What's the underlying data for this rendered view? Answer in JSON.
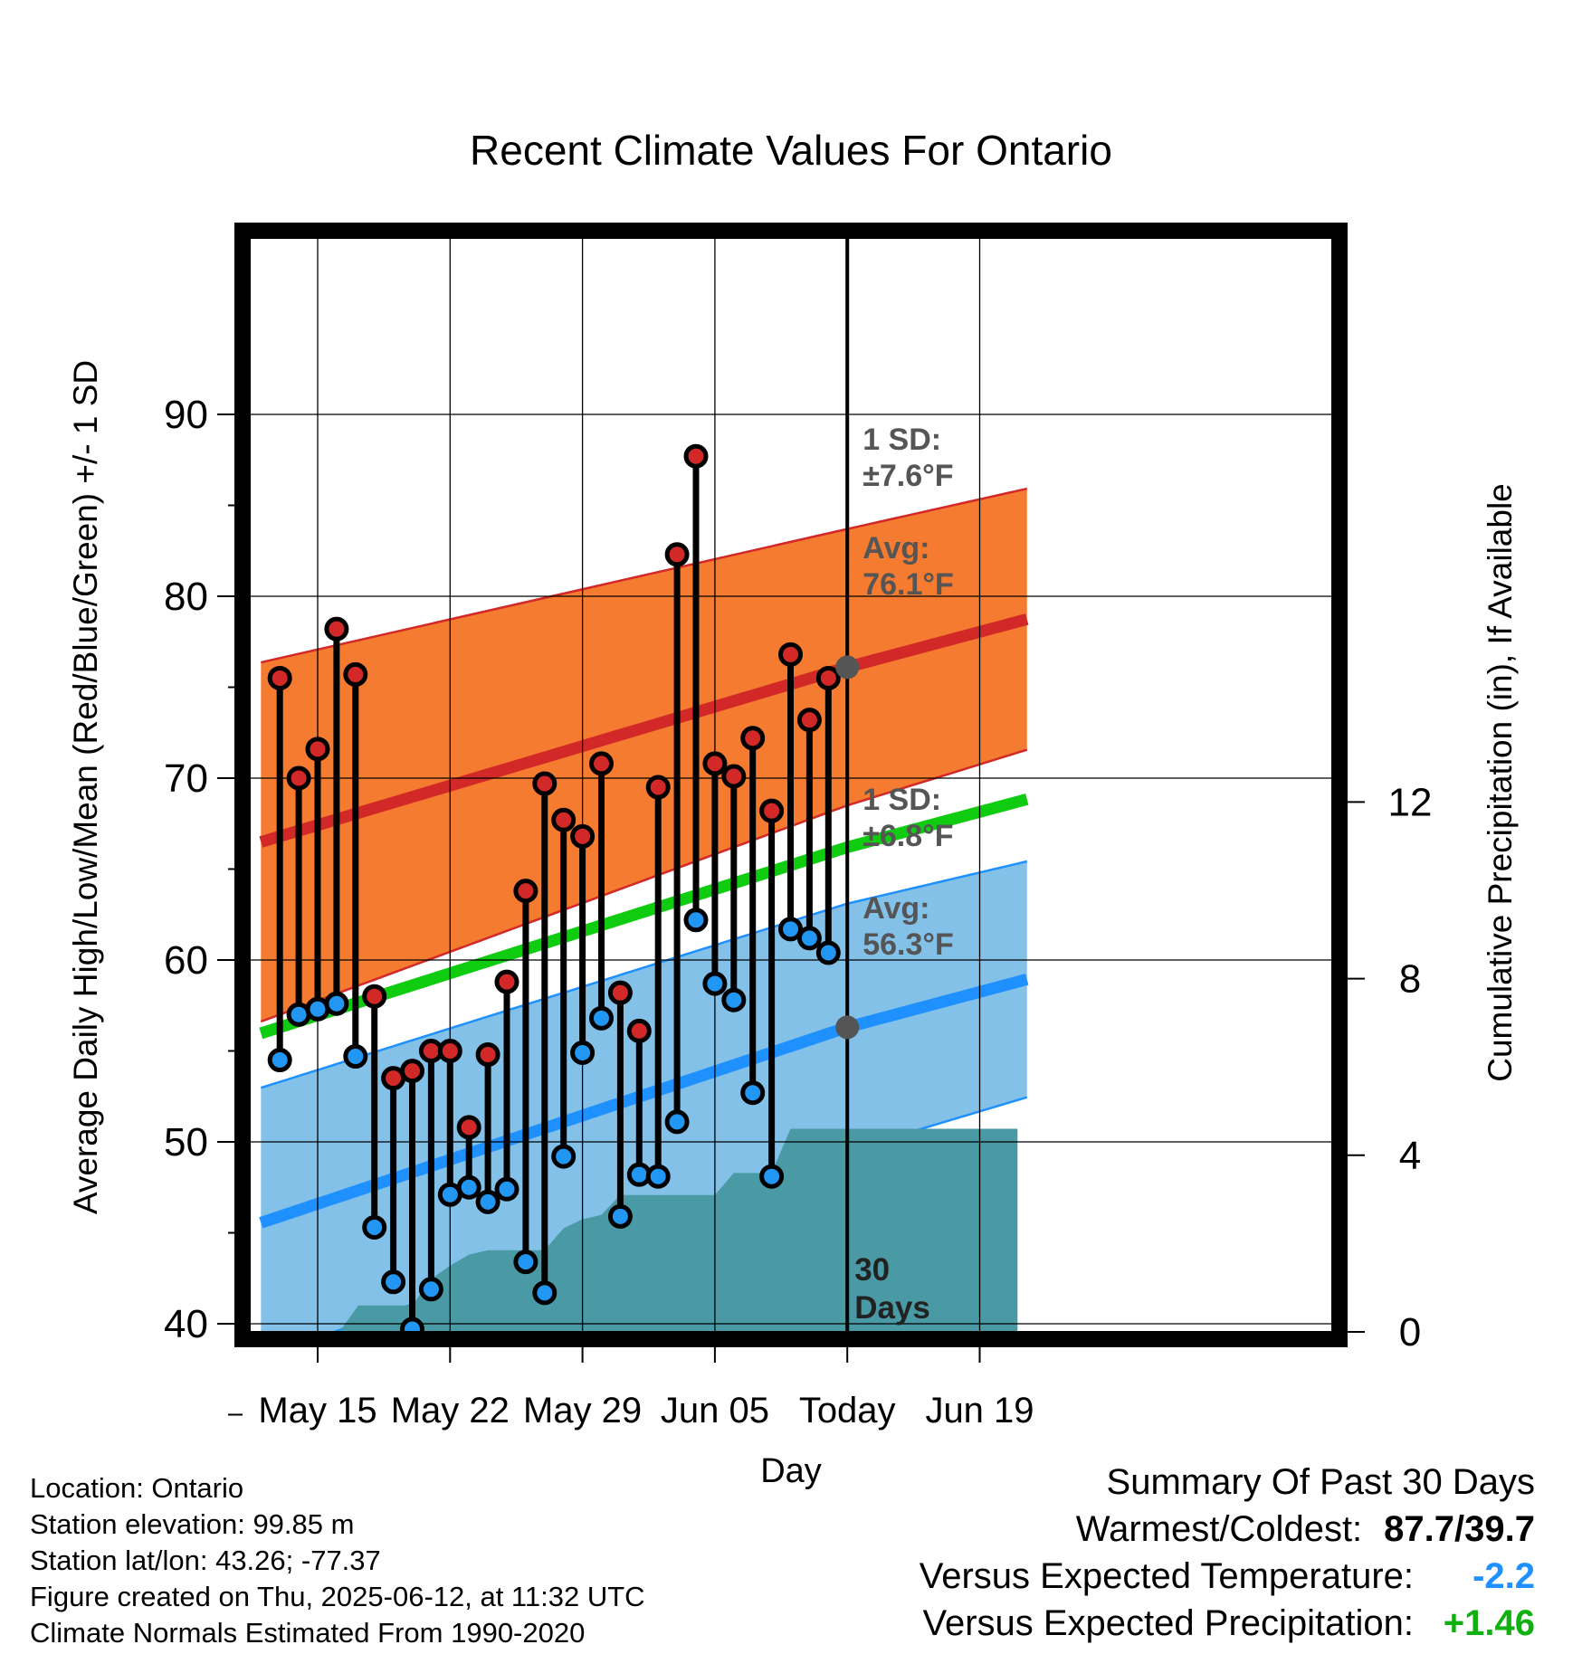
{
  "chart_data": {
    "type": "line",
    "title": "Recent Climate Values For Ontario",
    "xlabel": "Day",
    "ylabel": "Average Daily High/Low/Mean (Red/Blue/Green) +/- 1 SD",
    "y2label": "Cumulative Precipitation (in), If Available",
    "x_tick_labels": [
      "May 15",
      "May 22",
      "May 29",
      "Jun 05",
      "Today",
      "Jun 19"
    ],
    "x_tick_days": [
      0,
      7,
      14,
      21,
      28,
      35
    ],
    "x_range_days": [
      -3.0,
      37.9
    ],
    "today_day": 28,
    "ylim": [
      31.5,
      92.5
    ],
    "yticks": [
      40,
      50,
      60,
      70,
      80,
      90
    ],
    "y2lim": [
      0,
      26
    ],
    "y2ticks": [
      0,
      4,
      8,
      12
    ],
    "grid": true,
    "colors": {
      "high_band": "#f47b30",
      "high_line": "#d22828",
      "low_band": "#84c1e8",
      "low_line": "#1e90ff",
      "mean_line": "#10cc10",
      "precip": "#4a9aa6",
      "high_marker": "#d22828",
      "low_marker": "#2196f3",
      "annotation": "#555555"
    },
    "normals": {
      "day": [
        -2,
        28,
        37
      ],
      "high_avg": [
        66.8,
        76.1,
        78.6
      ],
      "high_sd": [
        9.8,
        7.6,
        7.2
      ],
      "low_avg": [
        45.9,
        56.3,
        58.8
      ],
      "low_sd": [
        7.4,
        6.8,
        6.5
      ],
      "mean": [
        56.3,
        66.2,
        68.7
      ]
    },
    "observations": {
      "day": [
        -2,
        -1,
        0,
        1,
        2,
        3,
        4,
        5,
        6,
        7,
        8,
        9,
        10,
        11,
        12,
        13,
        14,
        15,
        16,
        17,
        18,
        19,
        20,
        21,
        22,
        23,
        24,
        25,
        26,
        27
      ],
      "high": [
        75.5,
        70.0,
        71.6,
        78.2,
        75.7,
        58.0,
        53.5,
        53.9,
        55.0,
        55.0,
        50.8,
        54.8,
        58.8,
        63.8,
        69.7,
        67.7,
        66.8,
        70.8,
        58.2,
        56.1,
        69.5,
        82.3,
        87.7,
        70.8,
        70.1,
        72.2,
        68.2,
        76.8,
        73.2,
        75.5
      ],
      "low": [
        54.5,
        57.0,
        57.3,
        57.6,
        54.7,
        45.3,
        42.3,
        39.7,
        41.9,
        47.1,
        47.5,
        46.7,
        47.4,
        43.4,
        41.7,
        49.2,
        54.9,
        56.8,
        45.9,
        48.2,
        48.1,
        51.1,
        62.2,
        58.7,
        57.8,
        52.7,
        48.1,
        61.7,
        61.2,
        60.4
      ]
    },
    "precip_cumulative": {
      "day": [
        -2,
        0.0,
        1.15,
        2.15,
        5.0,
        6.0,
        7.0,
        8.0,
        9.0,
        10.0,
        11.0,
        12.0,
        13.0,
        14.0,
        15.0,
        16.0,
        17.0,
        18.0,
        19.0,
        20.0,
        21.0,
        22.0,
        23.0,
        24.0,
        25.0,
        26.0,
        27.0,
        28.0,
        33.0,
        37.0
      ],
      "value": [
        0,
        0,
        0,
        0.6,
        0.6,
        1.2,
        1.5,
        1.75,
        1.85,
        1.85,
        1.85,
        1.85,
        2.35,
        2.55,
        2.65,
        3.1,
        3.1,
        3.1,
        3.1,
        3.1,
        3.1,
        3.6,
        3.6,
        3.6,
        4.6,
        4.6,
        4.6,
        4.6,
        4.6,
        4.6
      ]
    },
    "annotations": {
      "high_sd_line1": "1 SD:",
      "high_sd_line2": "±7.6°F",
      "high_avg_line1": "Avg:",
      "high_avg_line2": "76.1°F",
      "low_sd_line1": "1 SD:",
      "low_sd_line2": "±6.8°F",
      "low_avg_line1": "Avg:",
      "low_avg_line2": "56.3°F",
      "days_line1": "30",
      "days_line2": "Days"
    }
  },
  "info": {
    "location": "Location: Ontario",
    "elevation": "Station elevation: 99.85 m",
    "latlon": "Station lat/lon: 43.26; -77.37",
    "created": "Figure created on Thu, 2025-06-12, at 11:32 UTC",
    "normals": "Climate Normals Estimated From 1990-2020"
  },
  "summary": {
    "title": "Summary Of Past 30 Days",
    "warmest_label": "Warmest/Coldest:",
    "warmest_value": "87.7/39.7",
    "temp_label": "Versus Expected Temperature:",
    "temp_value": "-2.2",
    "precip_label": "Versus Expected Precipitation:",
    "precip_value": "+1.46"
  }
}
